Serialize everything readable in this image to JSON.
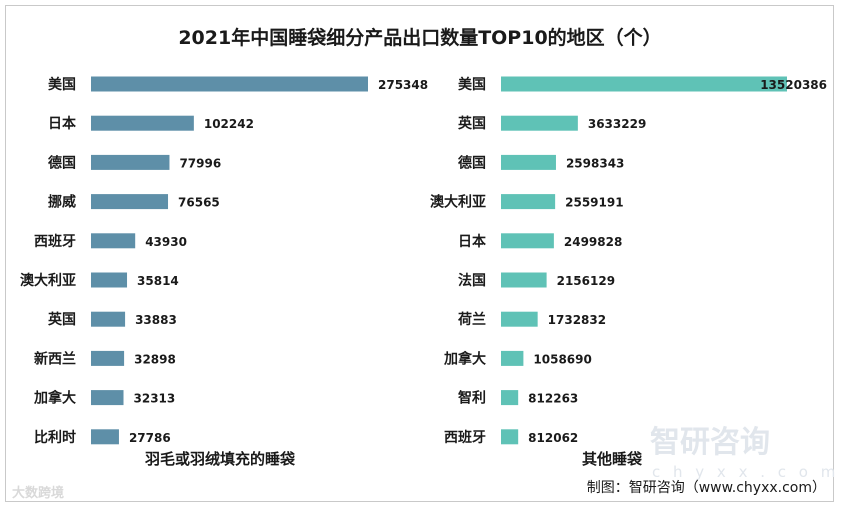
{
  "title": "2021年中国睡袋细分产品出口数量TOP10的地区（个）",
  "source": "制图：智研咨询（www.chyxx.com）",
  "watermark": {
    "brand": "智研咨询",
    "url": "c h y x x . c o m",
    "corner": "大数跨境"
  },
  "colors": {
    "left": "#5e8fa8",
    "right": "#5fc2b6"
  },
  "chart_data": [
    {
      "type": "bar",
      "orientation": "horizontal",
      "subtitle": "羽毛或羽绒填充的睡袋",
      "categories": [
        "美国",
        "日本",
        "德国",
        "挪威",
        "西班牙",
        "澳大利亚",
        "英国",
        "新西兰",
        "加拿大",
        "比利时"
      ],
      "values": [
        275348,
        102242,
        77996,
        76565,
        43930,
        35814,
        33883,
        32898,
        32313,
        27786
      ]
    },
    {
      "type": "bar",
      "orientation": "horizontal",
      "subtitle": "其他睡袋",
      "categories": [
        "美国",
        "英国",
        "德国",
        "澳大利亚",
        "日本",
        "法国",
        "荷兰",
        "加拿大",
        "智利",
        "西班牙"
      ],
      "values": [
        13520386,
        3633229,
        2598343,
        2559191,
        2499828,
        2156129,
        1732832,
        1058690,
        812263,
        812062
      ]
    }
  ]
}
